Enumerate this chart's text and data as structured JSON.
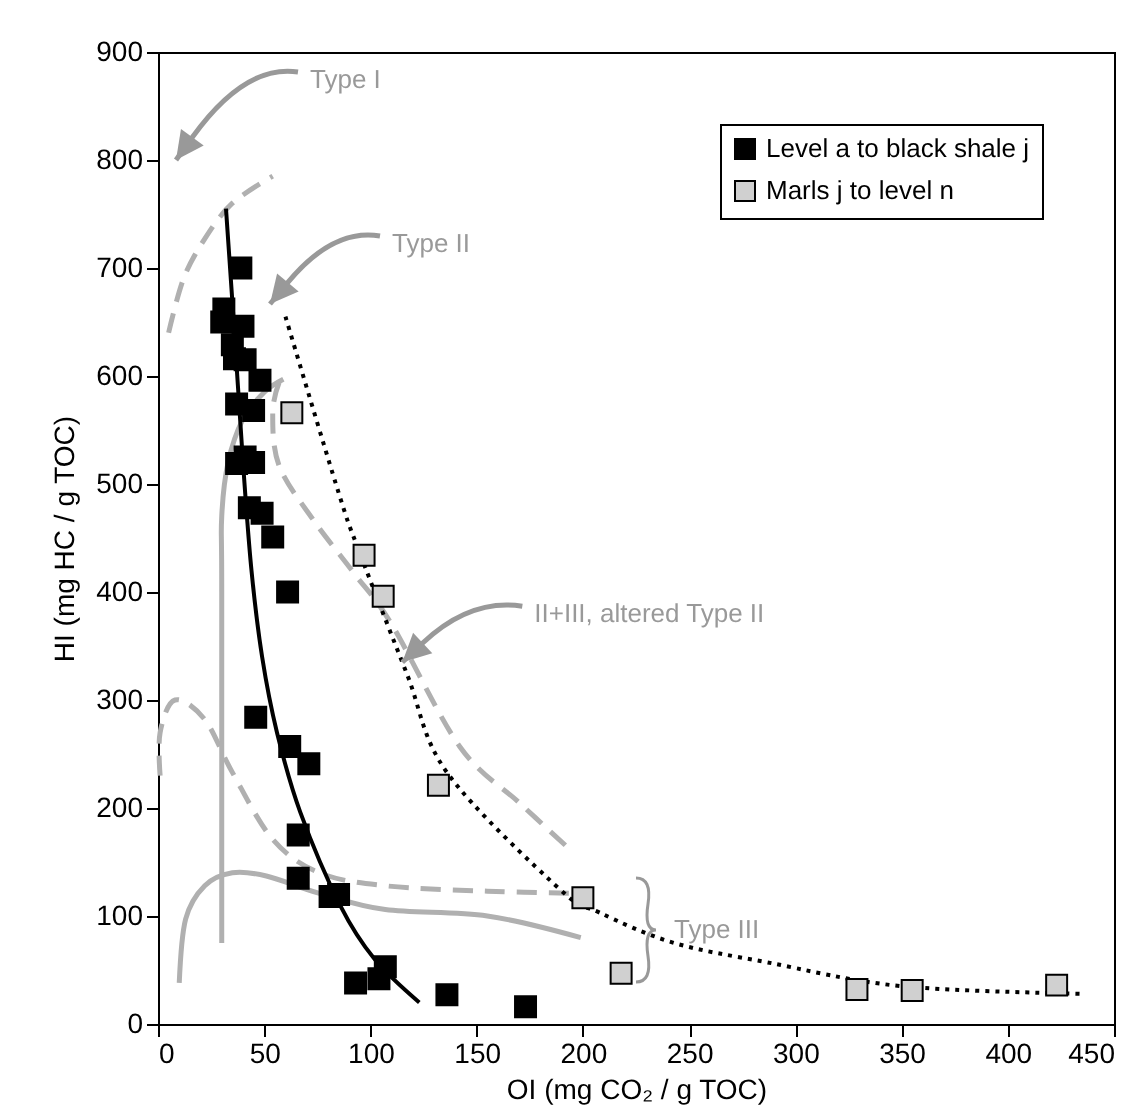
{
  "chart_data": {
    "type": "scatter",
    "xlabel": "OI (mg CO₂ / g TOC)",
    "ylabel": "HI (mg HC / g TOC)",
    "xlim": [
      0,
      450
    ],
    "ylim": [
      0,
      900
    ],
    "xticks": [
      0,
      50,
      100,
      150,
      200,
      250,
      300,
      350,
      400,
      450
    ],
    "yticks": [
      0,
      100,
      200,
      300,
      400,
      500,
      600,
      700,
      800,
      900
    ],
    "legend": "top right",
    "series": [
      {
        "type": "line",
        "color": "#b0b0b0",
        "line_style": "dashed",
        "x": [
          5,
          12,
          22,
          35,
          54
        ],
        "values": [
          640,
          690,
          727,
          760,
          785
        ]
      },
      {
        "type": "line",
        "color": "#b0b0b0",
        "line_style": "solid",
        "x": [
          30,
          30,
          30,
          33,
          40,
          50,
          59
        ],
        "values": [
          75,
          400,
          470,
          520,
          560,
          585,
          597
        ]
      },
      {
        "type": "line",
        "color": "#b0b0b0",
        "line_style": "dashed",
        "x": [
          57,
          54,
          57,
          73,
          92,
          110,
          142,
          170,
          192
        ],
        "values": [
          594,
          566,
          517,
          467,
          418,
          370,
          257,
          205,
          165
        ]
      },
      {
        "type": "line",
        "color": "#b0b0b0",
        "line_style": "dashed",
        "x": [
          1,
          1,
          8,
          22,
          35,
          54,
          76,
          107,
          155,
          199
        ],
        "values": [
          230,
          270,
          300,
          282,
          233,
          171,
          140,
          128,
          123,
          121
        ]
      },
      {
        "type": "line",
        "color": "#b0b0b0",
        "line_style": "solid",
        "x": [
          10,
          13,
          22,
          35,
          51,
          76,
          107,
          155,
          199
        ],
        "values": [
          38,
          97,
          128,
          140,
          137,
          121,
          106,
          100,
          80
        ]
      },
      {
        "type": "line",
        "color": "#000000",
        "line_style": "solid",
        "x": [
          32,
          36,
          40,
          44,
          49,
          56,
          67,
          86,
          102,
          123
        ],
        "values": [
          755,
          640,
          520,
          420,
          340,
          270,
          196,
          109,
          60,
          20
        ]
      },
      {
        "type": "line",
        "color": "#000000",
        "line_style": "dotted",
        "x": [
          60,
          85,
          95,
          117,
          136,
          189,
          208,
          243,
          287,
          350,
          435
        ],
        "values": [
          655,
          492,
          436,
          325,
          233,
          125,
          103,
          75,
          57,
          35,
          28
        ]
      },
      {
        "name": "Level a to black shale j",
        "color": "#000000",
        "marker": "square",
        "x": [
          39,
          31,
          30,
          40,
          35,
          36,
          41,
          48,
          37,
          45,
          37,
          45,
          41,
          43,
          49,
          54,
          61,
          46,
          62,
          71,
          66,
          66,
          81,
          85,
          93,
          104,
          107,
          136,
          173
        ],
        "values": [
          700,
          662,
          650,
          646,
          629,
          616,
          615,
          596,
          574,
          568,
          519,
          520,
          525,
          478,
          473,
          451,
          400,
          284,
          257,
          241,
          175,
          135,
          118,
          120,
          38,
          42,
          53,
          27,
          16
        ]
      },
      {
        "name": "Marls j to level n",
        "color": "#d0d0d0",
        "marker": "square",
        "x": [
          63,
          97,
          106,
          132,
          200,
          218,
          329,
          355,
          423
        ],
        "values": [
          566,
          434,
          396,
          221,
          117,
          47,
          32,
          31,
          36
        ]
      }
    ],
    "annotations": [
      "Type I",
      "Type II",
      {
        "text": "II+III, altered Type II",
        "x": 115,
        "y": 335
      },
      "Type III"
    ]
  }
}
